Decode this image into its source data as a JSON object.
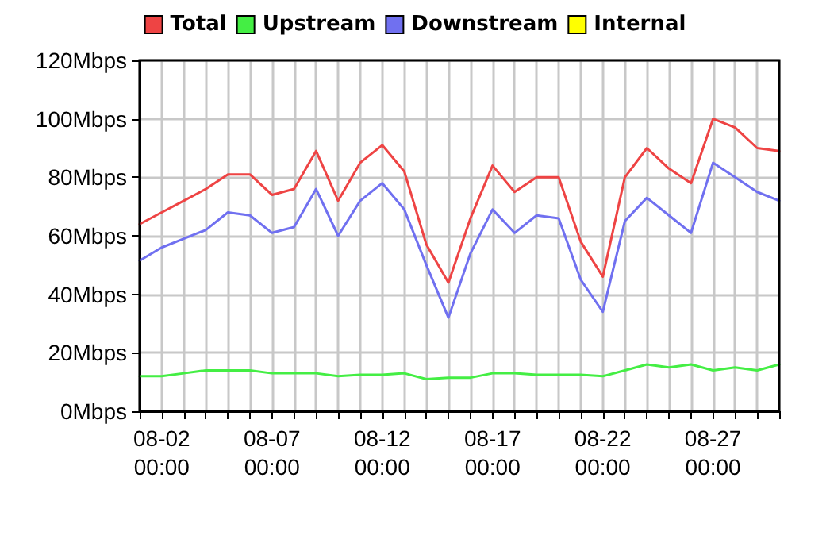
{
  "chart_data": {
    "type": "line",
    "x": [
      "--08-01",
      "--08-02",
      "--08-03",
      "--08-04",
      "--08-05",
      "--08-06",
      "--08-07",
      "--08-08",
      "--08-09",
      "--08-10",
      "--08-11",
      "--08-12",
      "--08-13",
      "--08-14",
      "--08-15",
      "--08-16",
      "--08-17",
      "--08-18",
      "--08-19",
      "--08-20",
      "--08-21",
      "--08-22",
      "--08-23",
      "--08-24",
      "--08-25",
      "--08-26",
      "--08-27",
      "--08-28",
      "--08-29",
      "--08-30"
    ],
    "series": [
      {
        "name": "Total",
        "color": "#ee4444",
        "values": [
          64,
          68,
          72,
          76,
          81,
          81,
          74,
          76,
          89,
          72,
          85,
          91,
          82,
          57,
          44,
          66,
          84,
          75,
          80,
          80,
          58,
          46,
          80,
          90,
          83,
          78,
          100,
          97,
          90,
          89
        ]
      },
      {
        "name": "Upstream",
        "color": "#44ee44",
        "values": [
          12,
          12,
          13,
          14,
          14,
          14,
          13,
          13,
          13,
          12,
          12.5,
          12.5,
          13,
          11,
          11.5,
          11.5,
          13,
          13,
          12.5,
          12.5,
          12.5,
          12,
          14,
          16,
          15,
          16,
          14,
          15,
          14,
          16
        ]
      },
      {
        "name": "Downstream",
        "color": "#7070f0",
        "values": [
          51.5,
          56,
          59,
          62,
          68,
          67,
          61,
          63,
          76,
          60,
          72,
          78,
          69,
          50,
          32,
          54,
          69,
          61,
          67,
          66,
          45,
          34,
          65,
          73,
          67,
          61,
          85,
          80,
          75,
          72
        ]
      },
      {
        "name": "Internal",
        "color": "#ffff00",
        "values": [
          null,
          null,
          null,
          null,
          null,
          null,
          null,
          null,
          null,
          null,
          null,
          null,
          null,
          null,
          null,
          null,
          null,
          null,
          null,
          null,
          null,
          null,
          null,
          null,
          null,
          null,
          null,
          null,
          null,
          null
        ]
      }
    ],
    "xlim": [
      "--08-01",
      "--08-30"
    ],
    "xticks": [
      {
        "value": "--08-01",
        "label": null
      },
      {
        "value": "--08-02",
        "label": "08-02\n00:00"
      },
      {
        "value": "--08-03",
        "label": null
      },
      {
        "value": "--08-04",
        "label": null
      },
      {
        "value": "--08-05",
        "label": null
      },
      {
        "value": "--08-06",
        "label": null
      },
      {
        "value": "--08-07",
        "label": "08-07\n00:00"
      },
      {
        "value": "--08-08",
        "label": null
      },
      {
        "value": "--08-09",
        "label": null
      },
      {
        "value": "--08-10",
        "label": null
      },
      {
        "value": "--08-11",
        "label": null
      },
      {
        "value": "--08-12",
        "label": "08-12\n00:00"
      },
      {
        "value": "--08-13",
        "label": null
      },
      {
        "value": "--08-14",
        "label": null
      },
      {
        "value": "--08-15",
        "label": null
      },
      {
        "value": "--08-16",
        "label": null
      },
      {
        "value": "--08-17",
        "label": "08-17\n00:00"
      },
      {
        "value": "--08-18",
        "label": null
      },
      {
        "value": "--08-19",
        "label": null
      },
      {
        "value": "--08-20",
        "label": null
      },
      {
        "value": "--08-21",
        "label": null
      },
      {
        "value": "--08-22",
        "label": "08-22\n00:00"
      },
      {
        "value": "--08-23",
        "label": null
      },
      {
        "value": "--08-24",
        "label": null
      },
      {
        "value": "--08-25",
        "label": null
      },
      {
        "value": "--08-26",
        "label": null
      },
      {
        "value": "--08-27",
        "label": "08-27\n00:00"
      },
      {
        "value": "--08-28",
        "label": null
      },
      {
        "value": "--08-29",
        "label": null
      },
      {
        "value": "--08-30",
        "label": null
      }
    ],
    "ylim": [
      0,
      120
    ],
    "yticks": [
      {
        "value": 0,
        "label": "0Mbps"
      },
      {
        "value": 20,
        "label": "20Mbps"
      },
      {
        "value": 40,
        "label": "40Mbps"
      },
      {
        "value": 60,
        "label": "60Mbps"
      },
      {
        "value": 80,
        "label": "80Mbps"
      },
      {
        "value": 100,
        "label": "100Mbps"
      },
      {
        "value": 120,
        "label": "120Mbps"
      }
    ],
    "grid": true,
    "legend": "top",
    "marker": "none",
    "line_style": "solid"
  }
}
